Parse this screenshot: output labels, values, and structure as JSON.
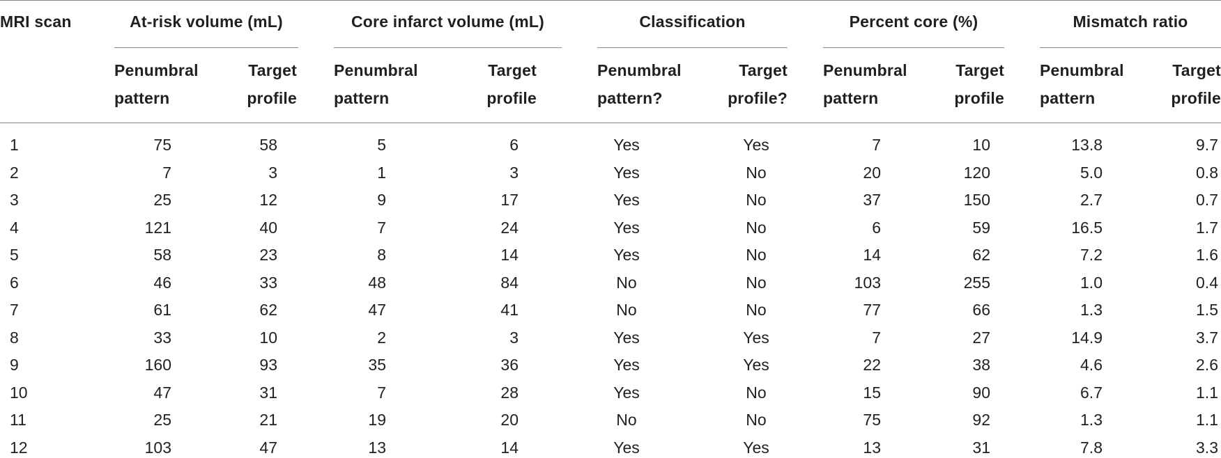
{
  "table": {
    "row_header_label": "MRI scan",
    "groups": [
      {
        "label": "At-risk volume (mL)",
        "sub": [
          "Penumbral pattern",
          "Target profile"
        ]
      },
      {
        "label": "Core infarct volume (mL)",
        "sub": [
          "Penumbral pattern",
          "Target profile"
        ]
      },
      {
        "label": "Classification",
        "sub": [
          "Penumbral pattern?",
          "Target profile?"
        ]
      },
      {
        "label": "Percent core (%)",
        "sub": [
          "Penumbral pattern",
          "Target profile"
        ]
      },
      {
        "label": "Mismatch ratio",
        "sub": [
          "Penumbral pattern",
          "Target profile"
        ]
      }
    ],
    "rows": [
      [
        "1",
        "75",
        "58",
        "5",
        "6",
        "Yes",
        "Yes",
        "7",
        "10",
        "13.8",
        "9.7"
      ],
      [
        "2",
        "7",
        "3",
        "1",
        "3",
        "Yes",
        "No",
        "20",
        "120",
        "5.0",
        "0.8"
      ],
      [
        "3",
        "25",
        "12",
        "9",
        "17",
        "Yes",
        "No",
        "37",
        "150",
        "2.7",
        "0.7"
      ],
      [
        "4",
        "121",
        "40",
        "7",
        "24",
        "Yes",
        "No",
        "6",
        "59",
        "16.5",
        "1.7"
      ],
      [
        "5",
        "58",
        "23",
        "8",
        "14",
        "Yes",
        "No",
        "14",
        "62",
        "7.2",
        "1.6"
      ],
      [
        "6",
        "46",
        "33",
        "48",
        "84",
        "No",
        "No",
        "103",
        "255",
        "1.0",
        "0.4"
      ],
      [
        "7",
        "61",
        "62",
        "47",
        "41",
        "No",
        "No",
        "77",
        "66",
        "1.3",
        "1.5"
      ],
      [
        "8",
        "33",
        "10",
        "2",
        "3",
        "Yes",
        "Yes",
        "7",
        "27",
        "14.9",
        "3.7"
      ],
      [
        "9",
        "160",
        "93",
        "35",
        "36",
        "Yes",
        "Yes",
        "22",
        "38",
        "4.6",
        "2.6"
      ],
      [
        "10",
        "47",
        "31",
        "7",
        "28",
        "Yes",
        "No",
        "15",
        "90",
        "6.7",
        "1.1"
      ],
      [
        "11",
        "25",
        "21",
        "19",
        "20",
        "No",
        "No",
        "75",
        "92",
        "1.3",
        "1.1"
      ],
      [
        "12",
        "103",
        "47",
        "13",
        "14",
        "Yes",
        "Yes",
        "13",
        "31",
        "7.8",
        "3.3"
      ]
    ]
  }
}
